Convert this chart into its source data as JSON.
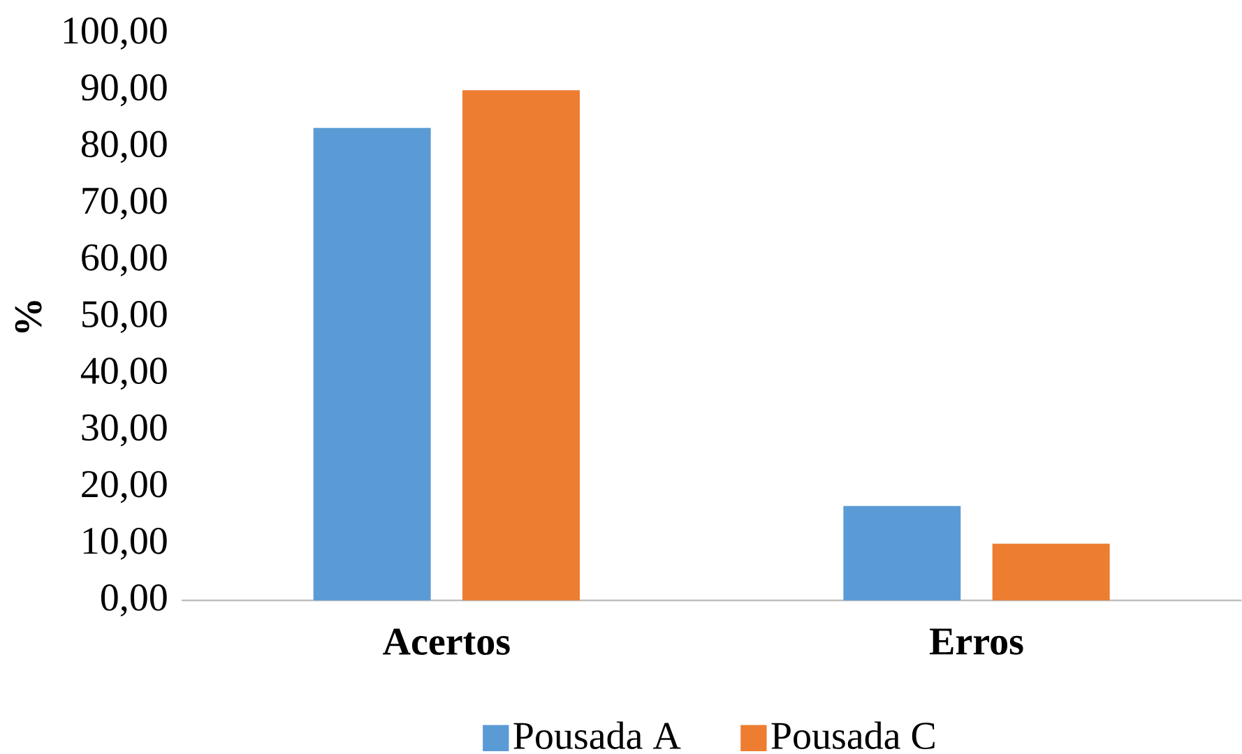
{
  "chart_data": {
    "type": "bar",
    "ylabel": "%",
    "categories": [
      "Acertos",
      "Erros"
    ],
    "series": [
      {
        "name": "Pousada A",
        "color": "#5b9bd5",
        "values": [
          83.33,
          16.67
        ]
      },
      {
        "name": "Pousada C",
        "color": "#ed7d31",
        "values": [
          90,
          10
        ]
      }
    ],
    "ylim": [
      0,
      100
    ],
    "yticks": [
      {
        "value": 0,
        "label": "0,00"
      },
      {
        "value": 10,
        "label": "10,00"
      },
      {
        "value": 20,
        "label": "20,00"
      },
      {
        "value": 30,
        "label": "30,00"
      },
      {
        "value": 40,
        "label": "40,00"
      },
      {
        "value": 50,
        "label": "50,00"
      },
      {
        "value": 60,
        "label": "60,00"
      },
      {
        "value": 70,
        "label": "70,00"
      },
      {
        "value": 80,
        "label": "80,00"
      },
      {
        "value": 90,
        "label": "90,00"
      },
      {
        "value": 100,
        "label": "100,00"
      }
    ],
    "grid": false,
    "legend": "bottom"
  }
}
